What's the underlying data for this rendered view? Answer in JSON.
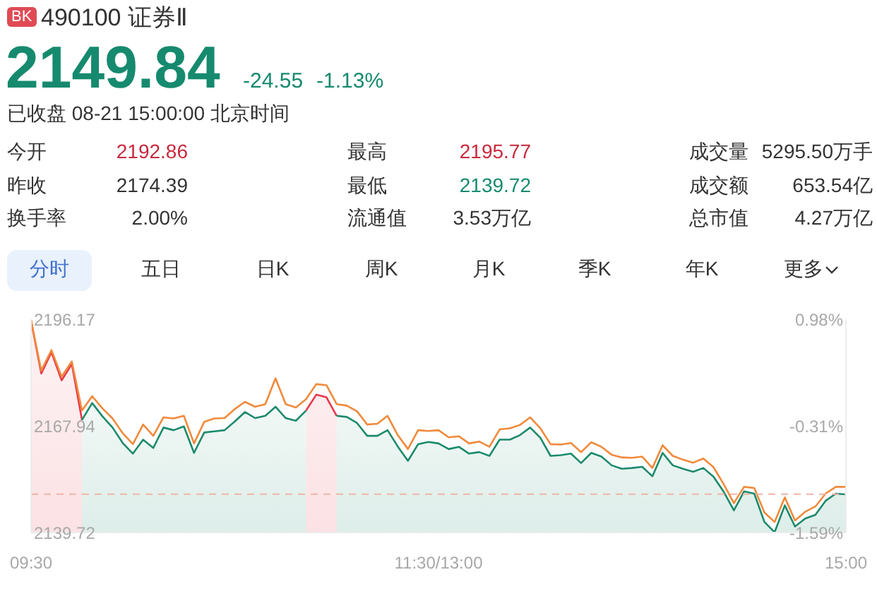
{
  "chart_data": {
    "type": "line",
    "title": "490100 证券Ⅱ",
    "annotations": [
      "BK",
      "2149.84",
      "-24.55",
      "-1.13%",
      "已收盘 08-21 15:00:00 北京时间",
      "今开",
      "2192.86",
      "最高",
      "2195.77",
      "成交量",
      "5295.50万手",
      "昨收",
      "2174.39",
      "最低",
      "2139.72",
      "成交额",
      "653.54亿",
      "换手率",
      "2.00%",
      "流通值",
      "3.53万亿",
      "总市值",
      "4.27万亿",
      "分时",
      "五日",
      "日K",
      "周K",
      "月K",
      "季K",
      "年K",
      "更多"
    ],
    "categories": [
      "09:30",
      null,
      null,
      null,
      null,
      null,
      null,
      null,
      null,
      null,
      null,
      null,
      null,
      null,
      null,
      null,
      null,
      null,
      null,
      null,
      null,
      null,
      null,
      null,
      null,
      null,
      null,
      null,
      null,
      null,
      null,
      null,
      null,
      null,
      null,
      null,
      null,
      null,
      null,
      null,
      "11:30/13:00",
      null,
      null,
      null,
      null,
      null,
      null,
      null,
      null,
      null,
      null,
      null,
      null,
      null,
      null,
      null,
      null,
      null,
      null,
      null,
      null,
      null,
      null,
      null,
      null,
      null,
      null,
      null,
      null,
      null,
      null,
      null,
      null,
      null,
      null,
      null,
      null,
      null,
      null,
      null,
      "15:00"
    ],
    "series": [
      {
        "type": "area",
        "color": "#e8394a",
        "values": [
          2195.8,
          2181.8,
          2187.4,
          2180.0,
          2184.3,
          2169.5,
          null,
          null,
          null,
          null,
          null,
          null,
          null,
          null,
          null,
          null,
          null,
          null,
          null,
          null,
          null,
          null,
          null,
          null,
          null,
          null,
          null,
          2172.0,
          2176.2,
          2175.5,
          2170.6,
          null,
          null,
          null,
          null,
          null,
          null,
          null,
          null,
          null,
          null,
          null,
          null,
          null,
          null,
          null,
          null,
          null,
          null,
          null,
          null,
          null,
          null,
          null,
          null,
          null,
          null,
          null,
          null,
          null,
          null,
          null,
          null,
          null,
          null,
          null,
          null,
          null,
          null,
          null,
          null,
          null,
          null,
          null,
          null,
          null,
          null,
          null,
          null,
          null,
          null
        ]
      },
      {
        "type": "area",
        "color": "#1c8a6c",
        "values": [
          null,
          null,
          null,
          null,
          null,
          2169.5,
          2174.0,
          2170.5,
          2167.5,
          2163.4,
          2160.6,
          2164.3,
          2162.1,
          2167.5,
          2166.8,
          2167.8,
          2160.8,
          2166.2,
          2166.5,
          2166.8,
          2169.1,
          2171.6,
          2170.0,
          2170.6,
          2173.0,
          2170.0,
          2169.3,
          2172.0,
          null,
          null,
          2170.6,
          2170.3,
          2168.7,
          2165.3,
          2165.3,
          2166.8,
          2162.5,
          2158.7,
          2163.1,
          2163.7,
          2163.3,
          2161.8,
          2162.4,
          2160.6,
          2161.0,
          2160.0,
          2164.3,
          2164.3,
          2165.5,
          2167.5,
          2164.8,
          2160.0,
          2160.2,
          2160.6,
          2158.1,
          2160.8,
          2159.8,
          2157.5,
          2156.6,
          2156.8,
          2157.1,
          2154.6,
          2160.8,
          2157.5,
          2156.6,
          2155.8,
          2156.8,
          2154.5,
          2150.5,
          2145.6,
          2150.6,
          2150.0,
          2142.5,
          2139.8,
          2146.9,
          2141.3,
          2143.4,
          2144.4,
          2148.1,
          2150.0,
          2149.8
        ]
      },
      {
        "color": "#f08a3c",
        "values": [
          2195.8,
          2182.6,
          2188.0,
          2181.0,
          2185.0,
          2172.0,
          2175.8,
          2172.6,
          2169.9,
          2166.0,
          2163.1,
          2168.3,
          2165.3,
          2170.2,
          2169.9,
          2170.6,
          2163.3,
          2169.0,
          2169.9,
          2170.0,
          2172.4,
          2174.3,
          2173.0,
          2173.7,
          2180.5,
          2173.7,
          2172.8,
          2175.0,
          2179.0,
          2178.7,
          2173.7,
          2173.3,
          2171.8,
          2168.3,
          2168.5,
          2170.6,
          2165.5,
          2161.8,
          2166.8,
          2166.6,
          2166.8,
          2164.9,
          2165.2,
          2163.3,
          2163.8,
          2162.4,
          2167.0,
          2167.3,
          2168.2,
          2170.2,
          2167.3,
          2163.1,
          2163.0,
          2163.4,
          2161.0,
          2163.6,
          2162.4,
          2160.3,
          2159.6,
          2159.5,
          2159.8,
          2156.8,
          2162.8,
          2160.0,
          2159.0,
          2158.2,
          2159.3,
          2157.0,
          2152.5,
          2147.5,
          2151.8,
          2151.5,
          2145.0,
          2142.5,
          2149.0,
          2142.9,
          2145.2,
          2146.6,
          2150.0,
          2151.8,
          2151.8
        ]
      }
    ],
    "ylim": [
      2139.72,
      2196.17
    ],
    "yticks": [
      2196.17,
      2167.94,
      2139.72
    ],
    "y2lim": [
      -1.59,
      0.98
    ],
    "y2ticks": [
      {
        "value": 0.98,
        "label": "0.98%"
      },
      {
        "value": -0.31,
        "label": "-0.31%"
      },
      {
        "value": -1.59,
        "label": "-1.59%"
      }
    ],
    "ref_lines": [
      {
        "axis": "y",
        "value": 2149.84,
        "color": "#f0b4a4",
        "line_style": "dashed"
      }
    ]
  }
}
